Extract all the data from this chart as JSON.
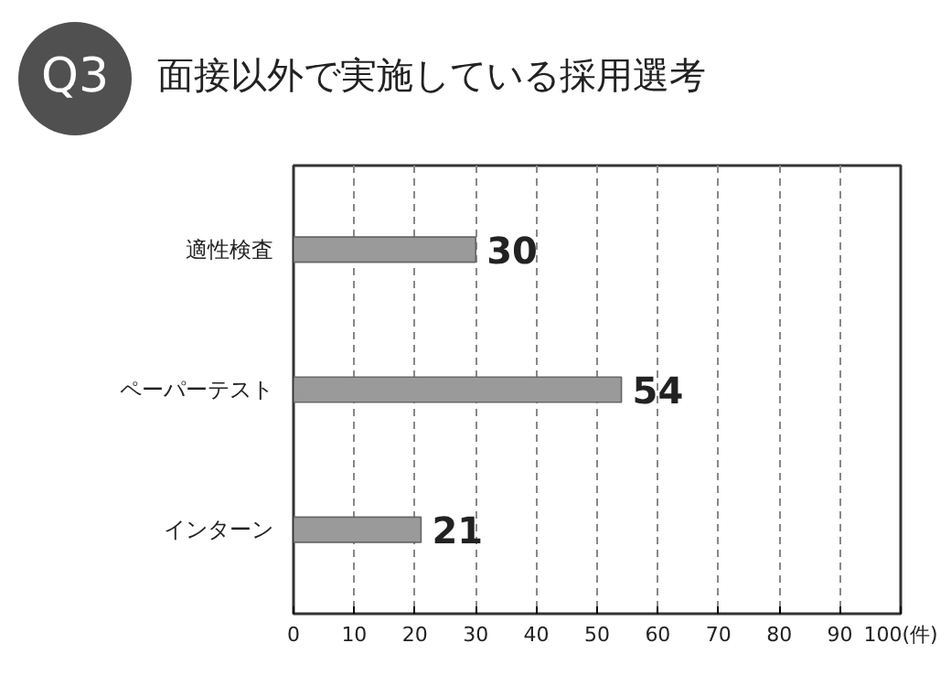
{
  "chart_data": {
    "type": "bar",
    "orientation": "horizontal",
    "title": "面接以外で実施している採用選考",
    "annotations": [
      "Q3"
    ],
    "categories": [
      "適性検査",
      "ペーパーテスト",
      "インターン"
    ],
    "values": [
      30,
      54,
      21
    ],
    "color": "#9a9a9a",
    "data_labels": true,
    "xlim": [
      0,
      100
    ],
    "xticks": [
      0,
      10,
      20,
      30,
      40,
      50,
      60,
      70,
      80,
      90,
      {
        "value": 100,
        "label": "100(件)"
      }
    ],
    "grid": "x"
  }
}
